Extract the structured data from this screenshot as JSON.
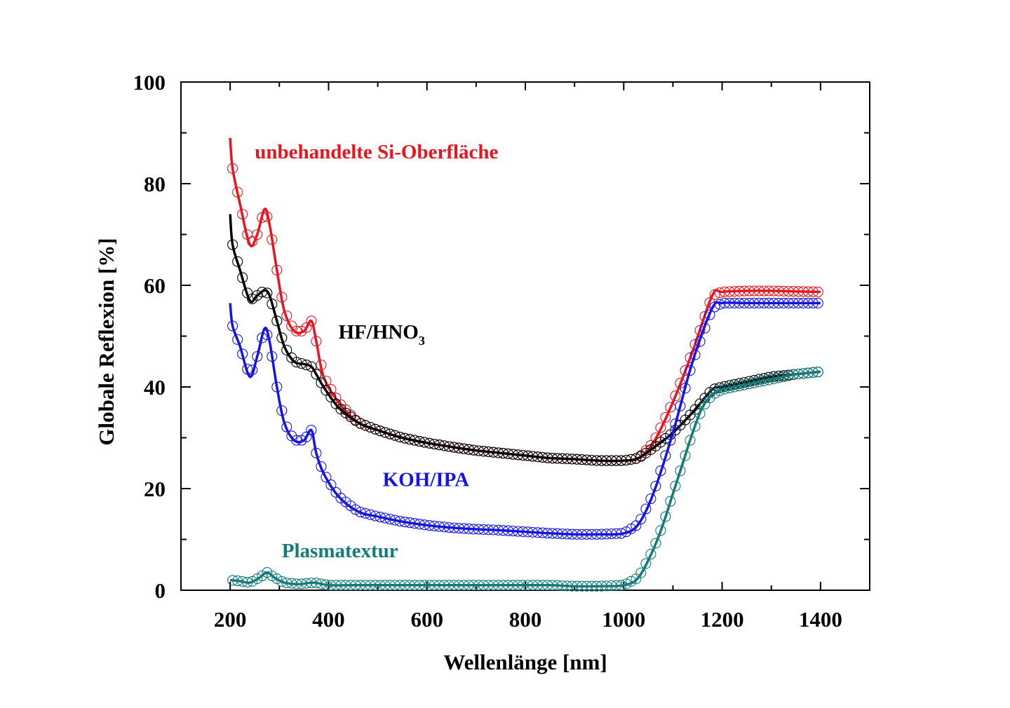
{
  "chart_data": {
    "type": "line",
    "title": "",
    "xlabel": "Wellenlänge [nm]",
    "ylabel": "Globale Reflexion [%]",
    "xlim": [
      100,
      1500
    ],
    "ylim": [
      0,
      100
    ],
    "x_ticks": [
      "200",
      "400",
      "600",
      "800",
      "1000",
      "1200",
      "1400"
    ],
    "y_ticks": [
      "0",
      "20",
      "40",
      "60",
      "80",
      "100"
    ],
    "grid": false,
    "legend": "none",
    "markers": "open circles on each series",
    "series": [
      {
        "name": "unbehandelte Si-Oberfläche",
        "color": "#e8141e",
        "x": [
          200,
          205,
          220,
          240,
          255,
          270,
          280,
          295,
          310,
          330,
          350,
          365,
          375,
          390,
          420,
          460,
          500,
          550,
          600,
          650,
          700,
          750,
          800,
          850,
          900,
          950,
          1000,
          1030,
          1060,
          1100,
          1140,
          1180,
          1200,
          1250,
          1300,
          1350,
          1400
        ],
        "y": [
          89,
          83,
          76,
          68,
          70,
          75,
          72,
          63,
          55,
          51,
          51,
          53,
          49,
          42,
          37,
          33,
          31.5,
          30,
          29,
          28.2,
          27.5,
          27,
          26.5,
          26,
          25.8,
          25.5,
          25.5,
          26,
          29,
          37,
          47,
          58,
          58.7,
          58.9,
          58.9,
          58.8,
          58.7
        ]
      },
      {
        "name": "HF/HNO3",
        "color": "#000000",
        "x": [
          200,
          205,
          220,
          240,
          255,
          270,
          280,
          295,
          310,
          330,
          350,
          365,
          375,
          390,
          420,
          460,
          500,
          550,
          600,
          650,
          700,
          750,
          800,
          850,
          900,
          950,
          1000,
          1030,
          1060,
          1100,
          1140,
          1180,
          1200,
          1250,
          1300,
          1350,
          1400
        ],
        "y": [
          74,
          68,
          63,
          57,
          58,
          59,
          58,
          53,
          48,
          45,
          44.5,
          44,
          42.5,
          40,
          36,
          33,
          31.5,
          30,
          29,
          28.2,
          27.5,
          27,
          26.5,
          26,
          25.8,
          25.5,
          25.5,
          26,
          28,
          31,
          35,
          39.5,
          40,
          41,
          42,
          42.5,
          43
        ]
      },
      {
        "name": "KOH/IPA",
        "color": "#1414e6",
        "x": [
          200,
          205,
          220,
          240,
          255,
          270,
          280,
          295,
          310,
          330,
          350,
          365,
          375,
          390,
          420,
          460,
          500,
          550,
          600,
          650,
          700,
          750,
          800,
          850,
          900,
          950,
          1000,
          1030,
          1060,
          1100,
          1140,
          1180,
          1200,
          1250,
          1300,
          1350,
          1400
        ],
        "y": [
          56.5,
          52,
          48,
          42,
          46,
          51.5,
          49,
          40,
          33,
          29.5,
          29.5,
          31.5,
          27,
          23,
          18.5,
          15.5,
          14.5,
          13.5,
          12.8,
          12.3,
          12,
          11.8,
          11.5,
          11.2,
          11,
          11,
          11.2,
          13,
          19,
          31,
          45,
          55.5,
          56.5,
          56.5,
          56.5,
          56.5,
          56.5
        ]
      },
      {
        "name": "Plasmatextur",
        "color": "#137b7b",
        "x": [
          200,
          220,
          240,
          260,
          275,
          290,
          310,
          340,
          370,
          400,
          450,
          500,
          600,
          700,
          800,
          850,
          900,
          950,
          1000,
          1030,
          1060,
          1080,
          1100,
          1120,
          1140,
          1160,
          1180,
          1200,
          1250,
          1300,
          1350,
          1400
        ],
        "y": [
          2,
          1.8,
          1.5,
          2.5,
          3.5,
          2.5,
          1.5,
          1.2,
          1.5,
          1,
          1,
          1,
          1,
          1,
          1,
          1,
          0.8,
          0.8,
          1,
          2.5,
          8,
          13,
          19,
          25,
          31,
          36,
          38.5,
          39.5,
          40.5,
          41.5,
          42.5,
          43
        ]
      }
    ],
    "annotations": [
      {
        "text": "unbehandelte Si-Oberfläche",
        "x": 250,
        "y": 85,
        "color": "#e8141e"
      },
      {
        "text": "HF/HNO",
        "subscript": "3",
        "x": 420,
        "y": 49.5,
        "color": "#000000"
      },
      {
        "text": "KOH/IPA",
        "x": 510,
        "y": 20.5,
        "color": "#1414e6"
      },
      {
        "text": "Plasmatextur",
        "x": 305,
        "y": 6.5,
        "color": "#137b7b"
      }
    ]
  }
}
